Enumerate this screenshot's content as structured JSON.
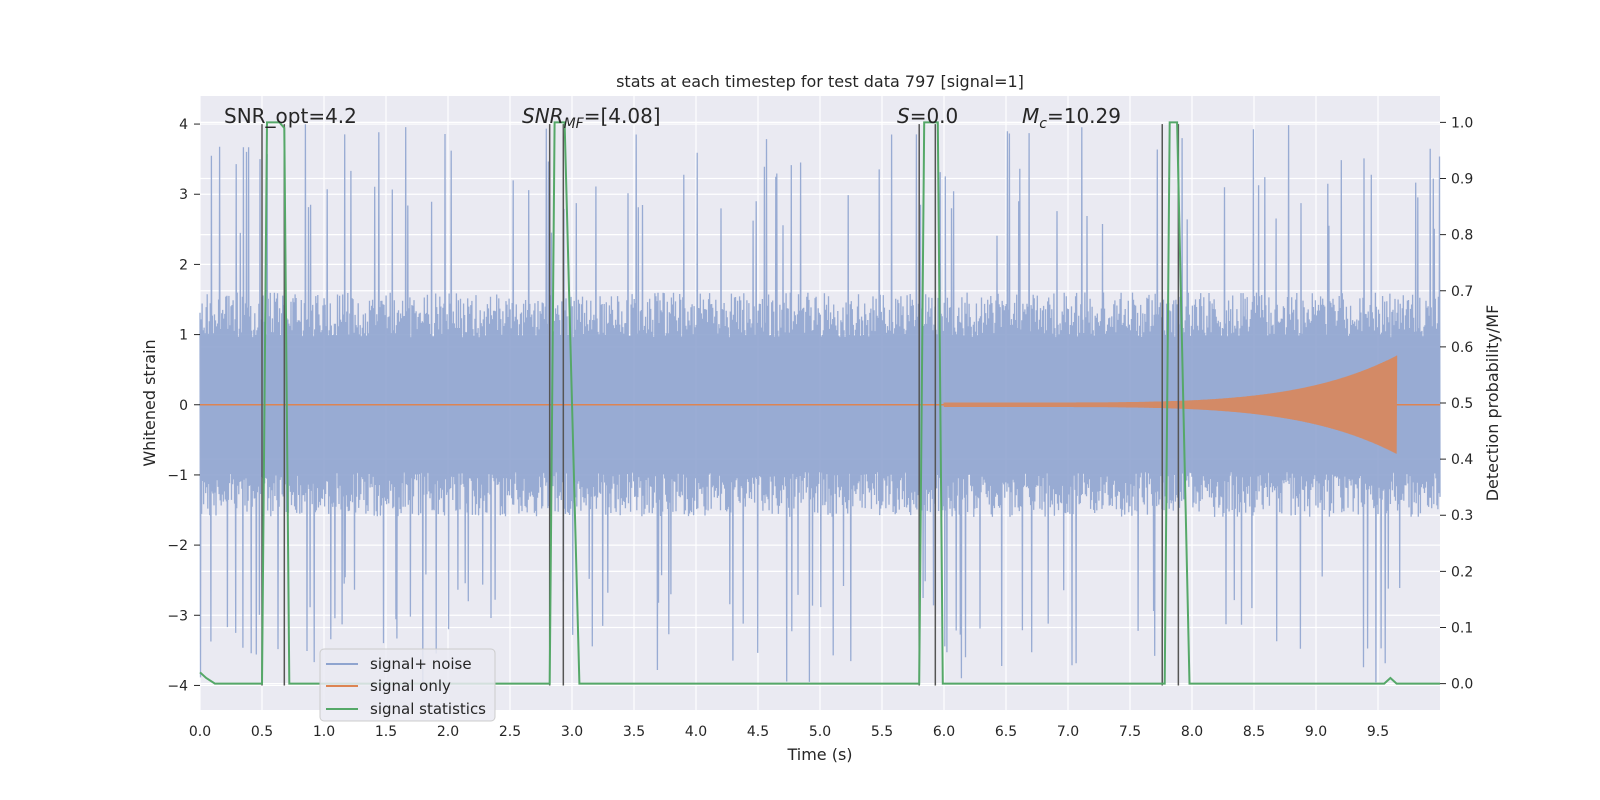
{
  "chart_data": {
    "type": "line",
    "title": "stats at each timestep for test data 797 [signal=1]",
    "xlabel": "Time (s)",
    "ylabel": "Whitened strain",
    "y2label": "Detection probability/MF",
    "xlim": [
      0.0,
      10.0
    ],
    "ylim": [
      -4.35,
      4.4
    ],
    "y2lim": [
      -0.047,
      1.047
    ],
    "x_ticks": [
      "0.0",
      "0.5",
      "1.0",
      "1.5",
      "2.0",
      "2.5",
      "3.0",
      "3.5",
      "4.0",
      "4.5",
      "5.0",
      "5.5",
      "6.0",
      "6.5",
      "7.0",
      "7.5",
      "8.0",
      "8.5",
      "9.0",
      "9.5"
    ],
    "y_ticks": [
      "4",
      "3",
      "2",
      "1",
      "0",
      "−1",
      "−2",
      "−3",
      "−4"
    ],
    "y2_ticks": [
      "1.0",
      "0.9",
      "0.8",
      "0.7",
      "0.6",
      "0.5",
      "0.4",
      "0.3",
      "0.2",
      "0.1",
      "0.0"
    ],
    "grid": true,
    "legend_position": "lower-left",
    "annotations": {
      "snr_opt": "SNR_opt=4.2",
      "snr_mf_label": "SNR",
      "snr_mf_sub": "MF",
      "snr_mf_value": "=[4.08]",
      "s_label": "S",
      "s_value": "=0.0",
      "mc_label": "M",
      "mc_sub": "c",
      "mc_value": "=10.29"
    },
    "series": [
      {
        "name": "signal+ noise",
        "color": "#8fa4cf",
        "description": "whitened strain noise, roughly ±2 typical, peaks near ±4",
        "envelope": {
          "typical": 1.6,
          "peak": 4.0
        }
      },
      {
        "name": "signal only",
        "color": "#dd8452",
        "chirp": {
          "start": 6.0,
          "end": 9.65,
          "peak_amplitude": 0.7
        }
      },
      {
        "name": "signal statistics",
        "color": "#55a868",
        "points": [
          [
            0.0,
            0.02
          ],
          [
            0.05,
            0.01
          ],
          [
            0.12,
            0.0
          ],
          [
            0.5,
            0.0
          ],
          [
            0.54,
            1.0
          ],
          [
            0.64,
            1.0
          ],
          [
            0.68,
            0.99
          ],
          [
            0.72,
            0.0
          ],
          [
            2.82,
            0.0
          ],
          [
            2.86,
            1.0
          ],
          [
            2.94,
            1.0
          ],
          [
            3.06,
            0.0
          ],
          [
            5.8,
            0.0
          ],
          [
            5.84,
            1.0
          ],
          [
            5.95,
            1.0
          ],
          [
            5.99,
            0.0
          ],
          [
            6.9,
            0.0
          ],
          [
            6.95,
            0.0
          ],
          [
            7.78,
            0.0
          ],
          [
            7.82,
            1.0
          ],
          [
            7.88,
            1.0
          ],
          [
            7.98,
            0.0
          ],
          [
            9.55,
            0.0
          ],
          [
            9.6,
            0.01
          ],
          [
            9.65,
            0.0
          ],
          [
            10.0,
            0.0
          ]
        ]
      },
      {
        "name": "",
        "color": "#555555",
        "type": "vertical-lines",
        "x": [
          0.5,
          0.68,
          2.82,
          2.93,
          5.8,
          5.93,
          7.76,
          7.89
        ]
      }
    ]
  }
}
